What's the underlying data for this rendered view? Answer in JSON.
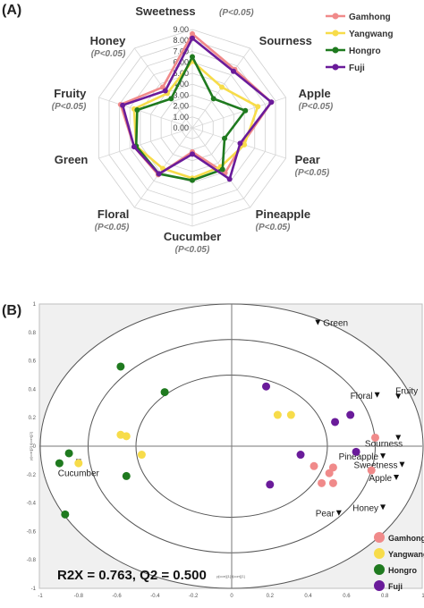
{
  "panels": {
    "a_label": "(A)",
    "b_label": "(B)"
  },
  "colors": {
    "Gamhong": "#f08a8a",
    "Yangwang": "#f7dc4a",
    "Hongro": "#1f7a1f",
    "Fuji": "#6a1b9a"
  },
  "chart_data": [
    {
      "type": "radar",
      "radial_ticks": [
        "0.00",
        "1.00",
        "2.00",
        "3.00",
        "4.00",
        "5.00",
        "6.00",
        "7.00",
        "8.00",
        "9.00"
      ],
      "rmax": 9,
      "axes": [
        {
          "label": "Sweetness",
          "note": "(P<0.05)"
        },
        {
          "label": "Sourness",
          "note": ""
        },
        {
          "label": "Apple",
          "note": "(P<0.05)"
        },
        {
          "label": "Pear",
          "note": "(P<0.05)"
        },
        {
          "label": "Pineapple",
          "note": "(P<0.05)"
        },
        {
          "label": "Cucumber",
          "note": "(P<0.05)"
        },
        {
          "label": "Floral",
          "note": "(P<0.05)"
        },
        {
          "label": "Green",
          "note": ""
        },
        {
          "label": "Fruity",
          "note": "(P<0.05)"
        },
        {
          "label": "Honey",
          "note": "(P<0.05)"
        }
      ],
      "legend": [
        "Gamhong",
        "Yangwang",
        "Hongro",
        "Fuji"
      ],
      "legend_position": "top-right",
      "series": [
        {
          "name": "Gamhong",
          "values": [
            8.6,
            6.6,
            7.6,
            4.8,
            5.1,
            2.2,
            5.3,
            5.6,
            6.9,
            4.6
          ]
        },
        {
          "name": "Yangwang",
          "values": [
            6.1,
            4.6,
            6.3,
            5.0,
            4.4,
            4.6,
            4.6,
            5.4,
            5.6,
            3.9
          ]
        },
        {
          "name": "Hongro",
          "values": [
            6.5,
            3.3,
            5.1,
            3.1,
            4.7,
            4.8,
            5.2,
            5.4,
            5.3,
            3.3
          ]
        },
        {
          "name": "Fuji",
          "values": [
            8.2,
            6.4,
            7.6,
            4.6,
            5.8,
            2.4,
            5.2,
            5.6,
            6.7,
            4.2
          ]
        }
      ]
    },
    {
      "type": "scatter",
      "xlim": [
        -1,
        1
      ],
      "ylim": [
        -1,
        1
      ],
      "xticks": [
        "-1",
        "-0.8",
        "-0.6",
        "-0.4",
        "-0.2",
        "0",
        "0.2",
        "0.4",
        "0.6",
        "0.8",
        "1"
      ],
      "yticks": [
        "1",
        "0.8",
        "0.6",
        "0.4",
        "0.2",
        "0",
        "-0.2",
        "-0.4",
        "-0.6",
        "-0.8",
        "-1"
      ],
      "xlabel": "p[corr][1]  t[corr][1]",
      "ylabel": "p[corr][2]  t[corr][2]",
      "annotation": "R2X = 0.763, Q2 = 0.500",
      "legend": [
        "Gamhong",
        "Yangwang",
        "Hongro",
        "Fuji"
      ],
      "legend_position": "bottom-right",
      "circles_radius": [
        1.0,
        0.75,
        0.5
      ],
      "points": [
        {
          "group": "Hongro",
          "x": -0.58,
          "y": 0.56
        },
        {
          "group": "Hongro",
          "x": -0.35,
          "y": 0.38
        },
        {
          "group": "Hongro",
          "x": -0.85,
          "y": -0.05
        },
        {
          "group": "Hongro",
          "x": -0.9,
          "y": -0.12
        },
        {
          "group": "Hongro",
          "x": -0.55,
          "y": -0.21
        },
        {
          "group": "Hongro",
          "x": -0.87,
          "y": -0.48
        },
        {
          "group": "Yangwang",
          "x": -0.58,
          "y": 0.08
        },
        {
          "group": "Yangwang",
          "x": -0.55,
          "y": 0.07
        },
        {
          "group": "Yangwang",
          "x": -0.47,
          "y": -0.06
        },
        {
          "group": "Yangwang",
          "x": -0.8,
          "y": -0.12
        },
        {
          "group": "Yangwang",
          "x": 0.24,
          "y": 0.22
        },
        {
          "group": "Yangwang",
          "x": 0.31,
          "y": 0.22
        },
        {
          "group": "Fuji",
          "x": 0.18,
          "y": 0.42
        },
        {
          "group": "Fuji",
          "x": 0.62,
          "y": 0.22
        },
        {
          "group": "Fuji",
          "x": 0.54,
          "y": 0.17
        },
        {
          "group": "Fuji",
          "x": 0.36,
          "y": -0.06
        },
        {
          "group": "Fuji",
          "x": 0.2,
          "y": -0.27
        },
        {
          "group": "Fuji",
          "x": 0.65,
          "y": -0.04
        },
        {
          "group": "Gamhong",
          "x": 0.75,
          "y": 0.06
        },
        {
          "group": "Gamhong",
          "x": 0.43,
          "y": -0.14
        },
        {
          "group": "Gamhong",
          "x": 0.51,
          "y": -0.19
        },
        {
          "group": "Gamhong",
          "x": 0.53,
          "y": -0.15
        },
        {
          "group": "Gamhong",
          "x": 0.47,
          "y": -0.26
        },
        {
          "group": "Gamhong",
          "x": 0.53,
          "y": -0.26
        },
        {
          "group": "Gamhong",
          "x": 0.73,
          "y": -0.17
        }
      ],
      "loadings": [
        {
          "label": "Green",
          "x": 0.45,
          "y": 0.87
        },
        {
          "label": "Floral",
          "x": 0.76,
          "y": 0.36
        },
        {
          "label": "Fruity",
          "x": 0.87,
          "y": 0.35
        },
        {
          "label": "Sourness",
          "x": 0.87,
          "y": 0.06
        },
        {
          "label": "Pineapple",
          "x": 0.79,
          "y": -0.07
        },
        {
          "label": "Sweetness",
          "x": 0.89,
          "y": -0.13
        },
        {
          "label": "Apple",
          "x": 0.86,
          "y": -0.22
        },
        {
          "label": "Honey",
          "x": 0.79,
          "y": -0.43
        },
        {
          "label": "Pear",
          "x": 0.56,
          "y": -0.47
        },
        {
          "label": "Cucumber",
          "x": -0.8,
          "y": -0.11
        }
      ]
    }
  ]
}
